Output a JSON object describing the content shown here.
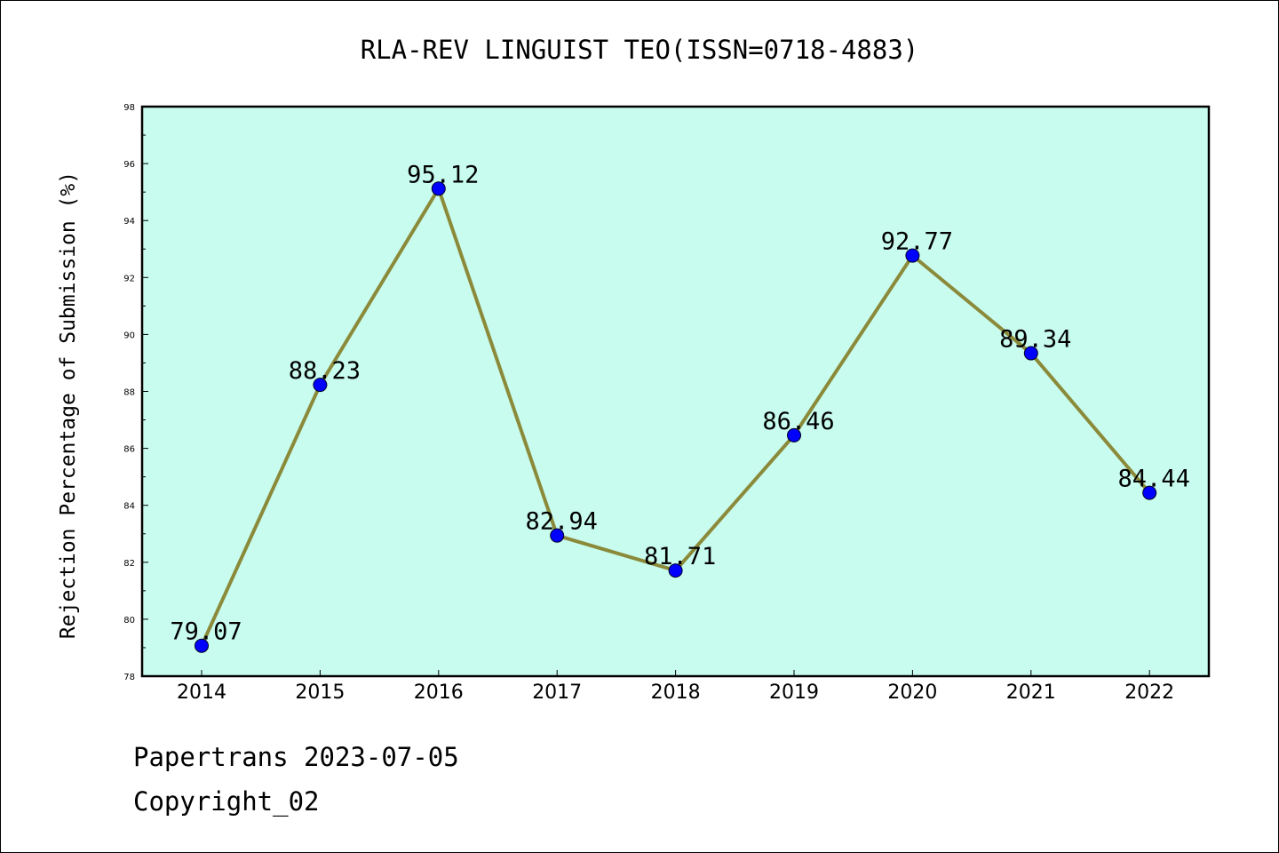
{
  "chart_data": {
    "type": "line",
    "title": "RLA-REV LINGUIST TEO(ISSN=0718-4883)",
    "xlabel": "",
    "ylabel": "Rejection Percentage of Submission (%)",
    "categories": [
      "2014",
      "2015",
      "2016",
      "2017",
      "2018",
      "2019",
      "2020",
      "2021",
      "2022"
    ],
    "series": [
      {
        "values": [
          79.07,
          88.23,
          95.12,
          82.94,
          81.71,
          86.46,
          92.77,
          89.34,
          84.44
        ],
        "data_labels": [
          "79.07",
          "88.23",
          "95.12",
          "82.94",
          "81.71",
          "86.46",
          "92.77",
          "89.34",
          "84.44"
        ]
      }
    ],
    "ylim": [
      78,
      98
    ],
    "yticks": [
      78,
      80,
      82,
      84,
      86,
      88,
      90,
      92,
      94,
      96,
      98
    ],
    "grid": false,
    "colors": {
      "plot_background": "#c8fcee",
      "line": "#8b8a3a",
      "marker": "#0000ff"
    }
  },
  "footer": {
    "line1": "Papertrans 2023-07-05",
    "line2": "Copyright_02"
  }
}
